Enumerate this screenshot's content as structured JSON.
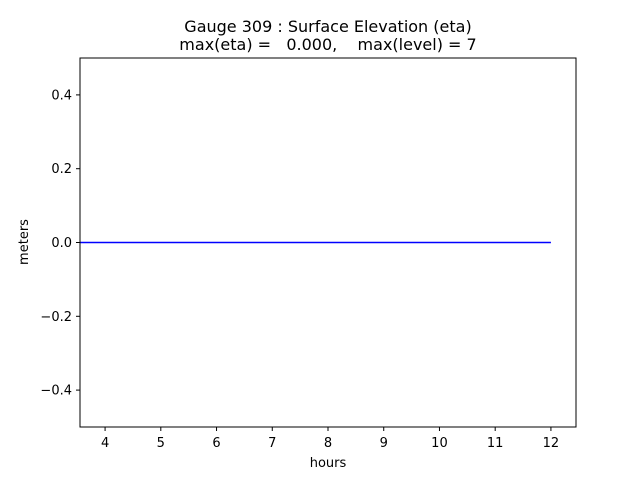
{
  "chart_data": {
    "type": "line",
    "title": "Gauge 309 : Surface Elevation (eta)",
    "subtitle": "max(eta) =   0.000,    max(level) = 7",
    "xlabel": "hours",
    "ylabel": "meters",
    "xlim": [
      3.55,
      12.45
    ],
    "ylim": [
      -0.5,
      0.5
    ],
    "xticks": [
      4,
      5,
      6,
      7,
      8,
      9,
      10,
      11,
      12
    ],
    "xtick_labels": [
      "4",
      "5",
      "6",
      "7",
      "8",
      "9",
      "10",
      "11",
      "12"
    ],
    "yticks": [
      0.4,
      0.2,
      0.0,
      -0.2,
      -0.4
    ],
    "ytick_labels": [
      "0.4",
      "0.2",
      "0.0",
      "−0.2",
      "−0.4"
    ],
    "grid": false,
    "series": [
      {
        "color": "#0000ff",
        "x": [
          3.55,
          12.0
        ],
        "y": [
          0.0,
          0.0
        ]
      }
    ]
  }
}
